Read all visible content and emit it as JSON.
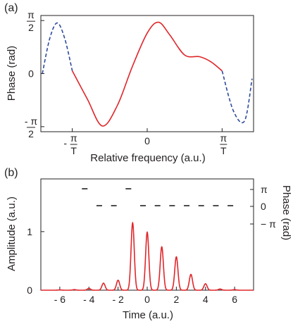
{
  "chart_data": [
    {
      "panel_label": "(a)",
      "type": "line",
      "xlabel": "Relative frequency (a.u.)",
      "ylabel": "Phase (rad)",
      "xlim": [
        -1.42,
        1.42
      ],
      "ylim": [
        -1.72,
        1.72
      ],
      "x_ticks": [
        {
          "value": -1,
          "num": "π",
          "den": "T",
          "sign": "-"
        },
        {
          "value": 0,
          "text": "0"
        },
        {
          "value": 1,
          "num": "π",
          "den": "T",
          "sign": ""
        }
      ],
      "y_ticks": [
        {
          "value": 1.5708,
          "num": "π",
          "den": "2",
          "sign": ""
        },
        {
          "value": 0,
          "text": "0"
        },
        {
          "value": -1.5708,
          "num": "",
          "den": "2",
          "sign": "- π"
        }
      ],
      "series": [
        {
          "style": "dashed",
          "color": "#2e4a9c",
          "x": [
            -1.4,
            -1.3,
            -1.2,
            -1.1,
            -1.0
          ],
          "y": [
            0.0,
            1.05,
            1.5,
            1.03,
            0.08
          ]
        },
        {
          "style": "solid",
          "color": "#e0262a",
          "x": [
            -1.0,
            -0.8,
            -0.6,
            -0.4,
            -0.2,
            0.0,
            0.15,
            0.3,
            0.5,
            0.7,
            0.85,
            1.0
          ],
          "y": [
            0.08,
            -0.75,
            -1.55,
            -0.95,
            0.2,
            1.2,
            1.52,
            1.15,
            0.55,
            0.5,
            0.35,
            0.08
          ]
        },
        {
          "style": "dashed",
          "color": "#2e4a9c",
          "x": [
            1.0,
            1.15,
            1.3,
            1.4
          ],
          "y": [
            0.08,
            -1.1,
            -1.4,
            -0.15
          ]
        }
      ]
    },
    {
      "panel_label": "(b)",
      "type": "line",
      "xlabel": "Time (a.u.)",
      "ylabel": "Amplitude (a.u.)",
      "y2label": "Phase (rad)",
      "xlim": [
        -7.3,
        7.3
      ],
      "ylim": [
        0,
        1.9
      ],
      "x_ticks": [
        "- 6",
        "- 4",
        "- 2",
        "0",
        "2",
        "4",
        "6"
      ],
      "x_tick_values": [
        -6,
        -4,
        -2,
        0,
        2,
        4,
        6
      ],
      "y_ticks": [
        "0",
        "1"
      ],
      "y_tick_values": [
        0,
        1
      ],
      "y2_ticks": [
        "π",
        "0",
        "− π"
      ],
      "series": [
        {
          "name": "Amplitude",
          "color": "#e0262a",
          "peaks": [
            {
              "x": -6,
              "y": 0.005
            },
            {
              "x": -5,
              "y": 0.01
            },
            {
              "x": -4,
              "y": 0.03
            },
            {
              "x": -3,
              "y": 0.12
            },
            {
              "x": -2,
              "y": 0.17
            },
            {
              "x": -1,
              "y": 1.15
            },
            {
              "x": 0,
              "y": 0.99
            },
            {
              "x": 1,
              "y": 0.74
            },
            {
              "x": 2,
              "y": 0.57
            },
            {
              "x": 3,
              "y": 0.27
            },
            {
              "x": 4,
              "y": 0.11
            },
            {
              "x": 5,
              "y": 0.02
            },
            {
              "x": 6,
              "y": 0.01
            }
          ]
        },
        {
          "name": "Phase",
          "color": "#231f20",
          "x": [
            -4,
            -3,
            -2,
            -1,
            0,
            1,
            2,
            3,
            4,
            5,
            6
          ],
          "y": [
            "π",
            "0",
            "0",
            "π",
            "0",
            "0",
            "0",
            "0",
            "0",
            "0",
            "0"
          ]
        }
      ]
    }
  ]
}
